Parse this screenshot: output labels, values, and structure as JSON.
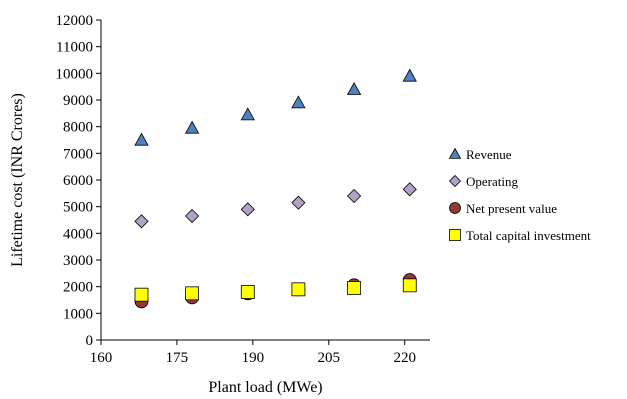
{
  "chart_data": {
    "type": "scatter",
    "title": "",
    "xlabel": "Plant load (MWe)",
    "ylabel": "Lifetime cost (INR Crores)",
    "xlim": [
      160,
      225
    ],
    "ylim": [
      0,
      12000
    ],
    "xticks": [
      160,
      175,
      190,
      205,
      220
    ],
    "yticks": [
      0,
      1000,
      2000,
      3000,
      4000,
      5000,
      6000,
      7000,
      8000,
      9000,
      10000,
      11000,
      12000
    ],
    "grid": false,
    "legend_position": "right",
    "series": [
      {
        "name": "Revenue",
        "marker": "triangle",
        "color": "#4f81bd",
        "x": [
          168,
          178,
          189,
          199,
          210,
          221
        ],
        "y": [
          7500,
          7950,
          8450,
          8900,
          9400,
          9900
        ]
      },
      {
        "name": "Operating",
        "marker": "diamond",
        "color": "#b2a2c7",
        "x": [
          168,
          178,
          189,
          199,
          210,
          221
        ],
        "y": [
          4450,
          4650,
          4900,
          5150,
          5400,
          5650
        ]
      },
      {
        "name": "Net present value",
        "marker": "circle",
        "color": "#953735",
        "x": [
          168,
          178,
          189,
          199,
          210,
          221
        ],
        "y": [
          1450,
          1600,
          1750,
          1900,
          2050,
          2250
        ]
      },
      {
        "name": "Total capital investment",
        "marker": "square",
        "color": "#ffff00",
        "x": [
          168,
          178,
          189,
          199,
          210,
          221
        ],
        "y": [
          1700,
          1750,
          1800,
          1900,
          1950,
          2050
        ]
      }
    ]
  }
}
